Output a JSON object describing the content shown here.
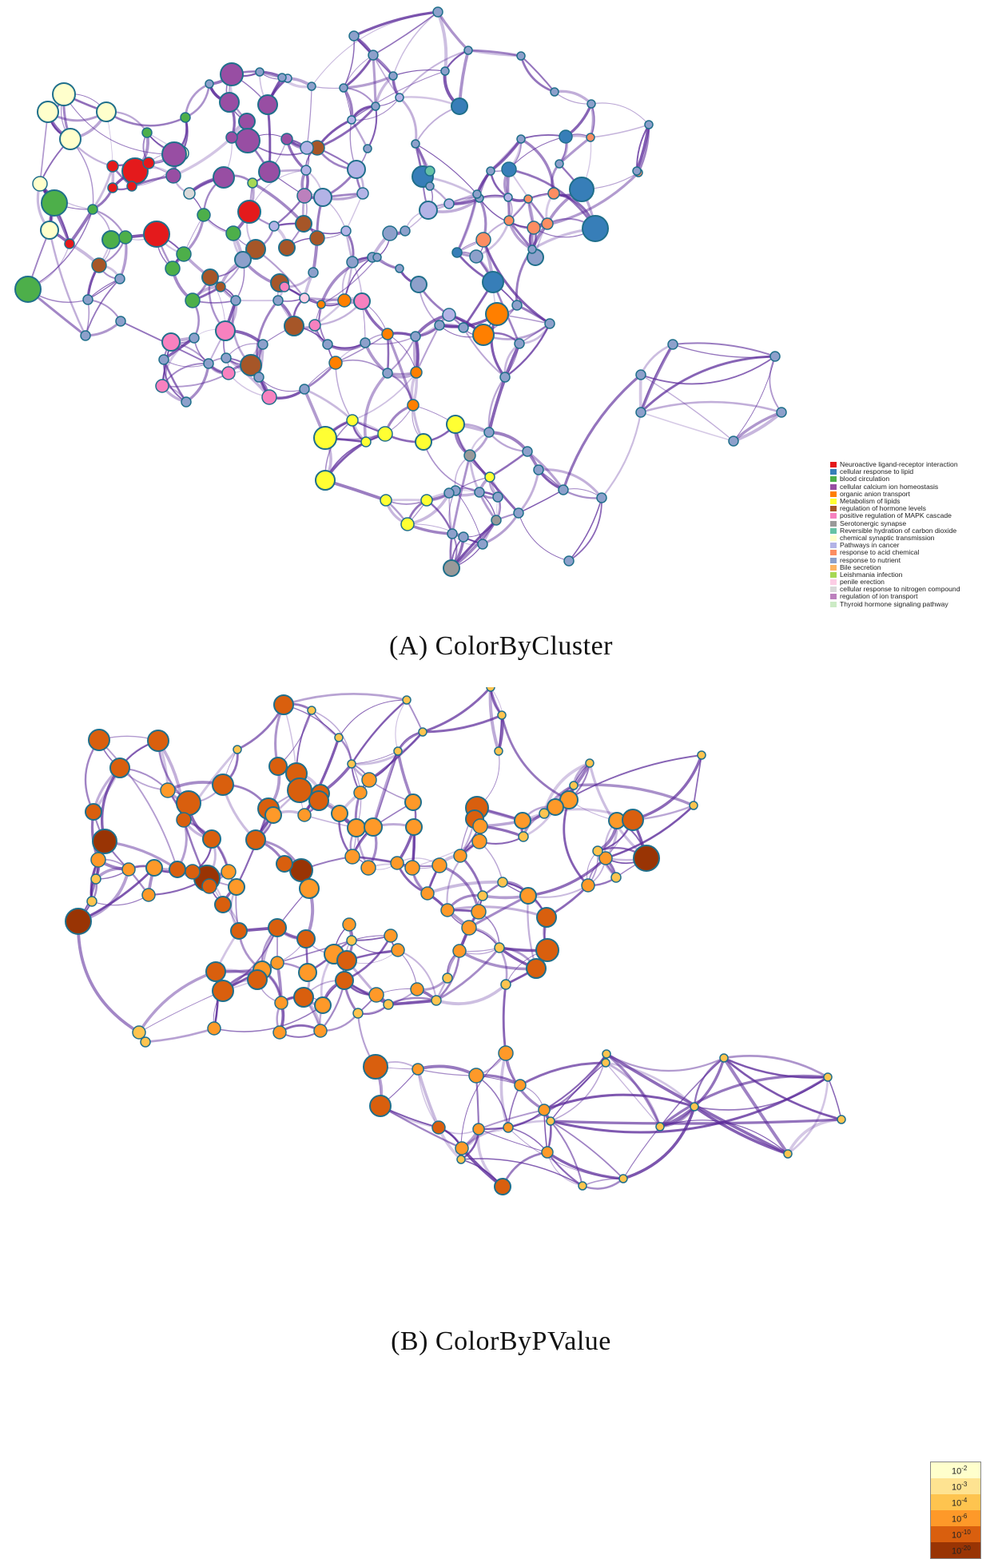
{
  "panel_a": {
    "caption": "(A) ColorByCluster",
    "legend": [
      {
        "label": "Neuroactive ligand-receptor interaction",
        "color": "#e41a1c"
      },
      {
        "label": "cellular response to lipid",
        "color": "#377eb8"
      },
      {
        "label": "blood circulation",
        "color": "#4daf4a"
      },
      {
        "label": "cellular calcium ion homeostasis",
        "color": "#984ea3"
      },
      {
        "label": "organic anion transport",
        "color": "#ff7f00"
      },
      {
        "label": "Metabolism of lipids",
        "color": "#ffff33"
      },
      {
        "label": "regulation of hormone levels",
        "color": "#a65628"
      },
      {
        "label": "positive regulation of MAPK cascade",
        "color": "#f781bf"
      },
      {
        "label": "Serotonergic synapse",
        "color": "#999999"
      },
      {
        "label": "Reversible hydration of carbon dioxide",
        "color": "#66c2a5"
      },
      {
        "label": "chemical synaptic transmission",
        "color": "#ffffcc"
      },
      {
        "label": "Pathways in cancer",
        "color": "#b3b3e6"
      },
      {
        "label": "response to acid chemical",
        "color": "#fc8d62"
      },
      {
        "label": "response to nutrient",
        "color": "#8da0cb"
      },
      {
        "label": "Bile secretion",
        "color": "#fdb462"
      },
      {
        "label": "Leishmania infection",
        "color": "#a6d854"
      },
      {
        "label": "penile erection",
        "color": "#fccde5"
      },
      {
        "label": "cellular response to nitrogen compound",
        "color": "#d9d9d9"
      },
      {
        "label": "regulation of ion transport",
        "color": "#bc80bd"
      },
      {
        "label": "Thyroid hormone signaling pathway",
        "color": "#ccebc5"
      }
    ]
  },
  "panel_b": {
    "caption": "(B) ColorByPValue",
    "legend": [
      {
        "base": "10",
        "exp": "-2",
        "color": "#ffffcc"
      },
      {
        "base": "10",
        "exp": "-3",
        "color": "#fee391"
      },
      {
        "base": "10",
        "exp": "-4",
        "color": "#fec44f"
      },
      {
        "base": "10",
        "exp": "-6",
        "color": "#fe9929"
      },
      {
        "base": "10",
        "exp": "-10",
        "color": "#d95f0e"
      },
      {
        "base": "10",
        "exp": "-20",
        "color": "#993404"
      }
    ]
  },
  "colors": {
    "edge": "#5b2a9a",
    "node_stroke": "#1f6f8b"
  }
}
